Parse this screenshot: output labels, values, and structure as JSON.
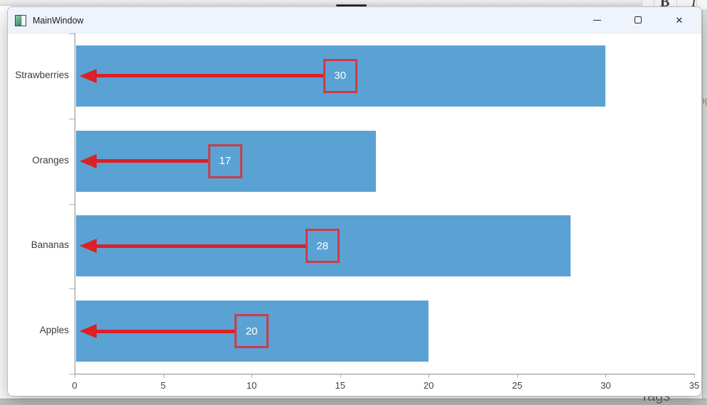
{
  "window": {
    "title": "MainWindow",
    "controls": {
      "close_glyph": "✕"
    }
  },
  "background": {
    "toolbar_letters": {
      "bold": "B",
      "italic": "I"
    },
    "right_edge_text": "ng",
    "bottom_right_text": "Tags"
  },
  "chart_data": {
    "type": "bar",
    "orientation": "horizontal",
    "title": "",
    "categories": [
      "Strawberries",
      "Oranges",
      "Bananas",
      "Apples"
    ],
    "values": [
      30,
      17,
      28,
      20
    ],
    "x_ticks": [
      0,
      5,
      10,
      15,
      20,
      25,
      30,
      35
    ],
    "xlim": [
      0,
      35
    ],
    "grid": false,
    "legend": "none",
    "bar_color": "#5AA2D3",
    "annotation_style": "value in red-bordered box at bar midpoint with red arrow pointing left to axis",
    "arrow_color": "#DD1F26",
    "box_border_color": "#CE3B45",
    "value_text_color": "#FFFFFF"
  }
}
